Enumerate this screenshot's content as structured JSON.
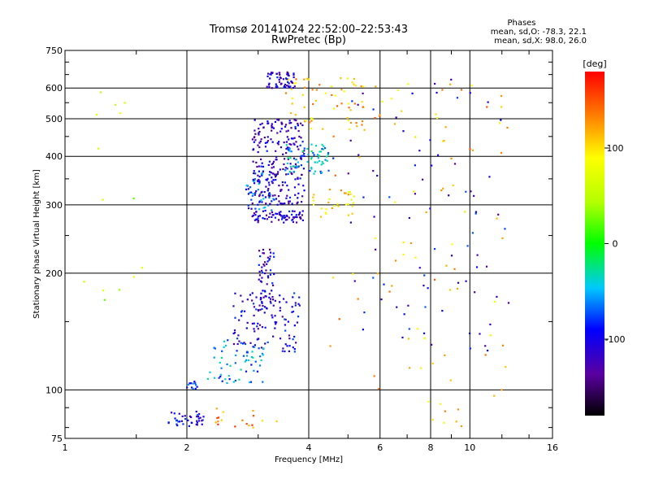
{
  "chart_data": {
    "type": "scatter",
    "title": "Tromsø 20141024 22:52:00–22:53:43",
    "subtitle": "RwPretec (Bp)",
    "xlabel": "Frequency [MHz]",
    "ylabel": "Stationary phase Virtual Height [km]",
    "x_scale": "log",
    "y_scale": "log",
    "xlim": [
      1,
      16
    ],
    "ylim": [
      75,
      750
    ],
    "x_ticks": [
      1,
      2,
      4,
      6,
      8,
      10,
      16
    ],
    "y_ticks": [
      75,
      100,
      200,
      300,
      400,
      500,
      600,
      750
    ],
    "grid": true,
    "stats": {
      "heading": "Phases",
      "line_o": "mean, sd,O: -78.3, 22.1",
      "line_x": "mean, sd,X:  98.0, 26.0"
    },
    "colorbar": {
      "label": "[deg]",
      "range": [
        -180,
        180
      ],
      "ticks": [
        100,
        0,
        -100
      ]
    },
    "clusters": [
      {
        "x": [
          1.8,
          2.2
        ],
        "y": [
          80,
          88
        ],
        "phase": -100,
        "n": 40
      },
      {
        "x": [
          2.0,
          2.15
        ],
        "y": [
          100,
          106
        ],
        "phase": -90,
        "n": 12
      },
      {
        "x": [
          2.25,
          3.1
        ],
        "y": [
          104,
          135
        ],
        "phase": -60,
        "n": 60
      },
      {
        "x": [
          2.6,
          3.8
        ],
        "y": [
          125,
          180
        ],
        "phase": -105,
        "n": 110
      },
      {
        "x": [
          3.0,
          3.3
        ],
        "y": [
          160,
          240
        ],
        "phase": -110,
        "n": 60
      },
      {
        "x": [
          2.9,
          3.9
        ],
        "y": [
          270,
          290
        ],
        "phase": -110,
        "n": 70
      },
      {
        "x": [
          2.8,
          3.3
        ],
        "y": [
          290,
          370
        ],
        "phase": -75,
        "n": 60
      },
      {
        "x": [
          2.9,
          3.9
        ],
        "y": [
          300,
          500
        ],
        "phase": -115,
        "n": 230
      },
      {
        "x": [
          3.5,
          4.6
        ],
        "y": [
          360,
          430
        ],
        "phase": -50,
        "n": 70
      },
      {
        "x": [
          3.15,
          3.7
        ],
        "y": [
          600,
          660
        ],
        "phase": -115,
        "n": 60
      },
      {
        "x": [
          3.5,
          5.5
        ],
        "y": [
          450,
          640
        ],
        "phase": 110,
        "n": 60
      },
      {
        "x": [
          4.0,
          5.2
        ],
        "y": [
          275,
          330
        ],
        "phase": 100,
        "n": 30
      },
      {
        "x": [
          4.5,
          12.5
        ],
        "y": [
          80,
          650
        ],
        "phase": 115,
        "n": 90
      },
      {
        "x": [
          5.0,
          12.5
        ],
        "y": [
          120,
          640
        ],
        "phase": -105,
        "n": 80
      },
      {
        "x": [
          1.1,
          1.6
        ],
        "y": [
          150,
          630
        ],
        "phase": 50,
        "n": 14
      },
      {
        "x": [
          2.2,
          3.5
        ],
        "y": [
          80,
          90
        ],
        "phase": 130,
        "n": 18
      }
    ]
  }
}
